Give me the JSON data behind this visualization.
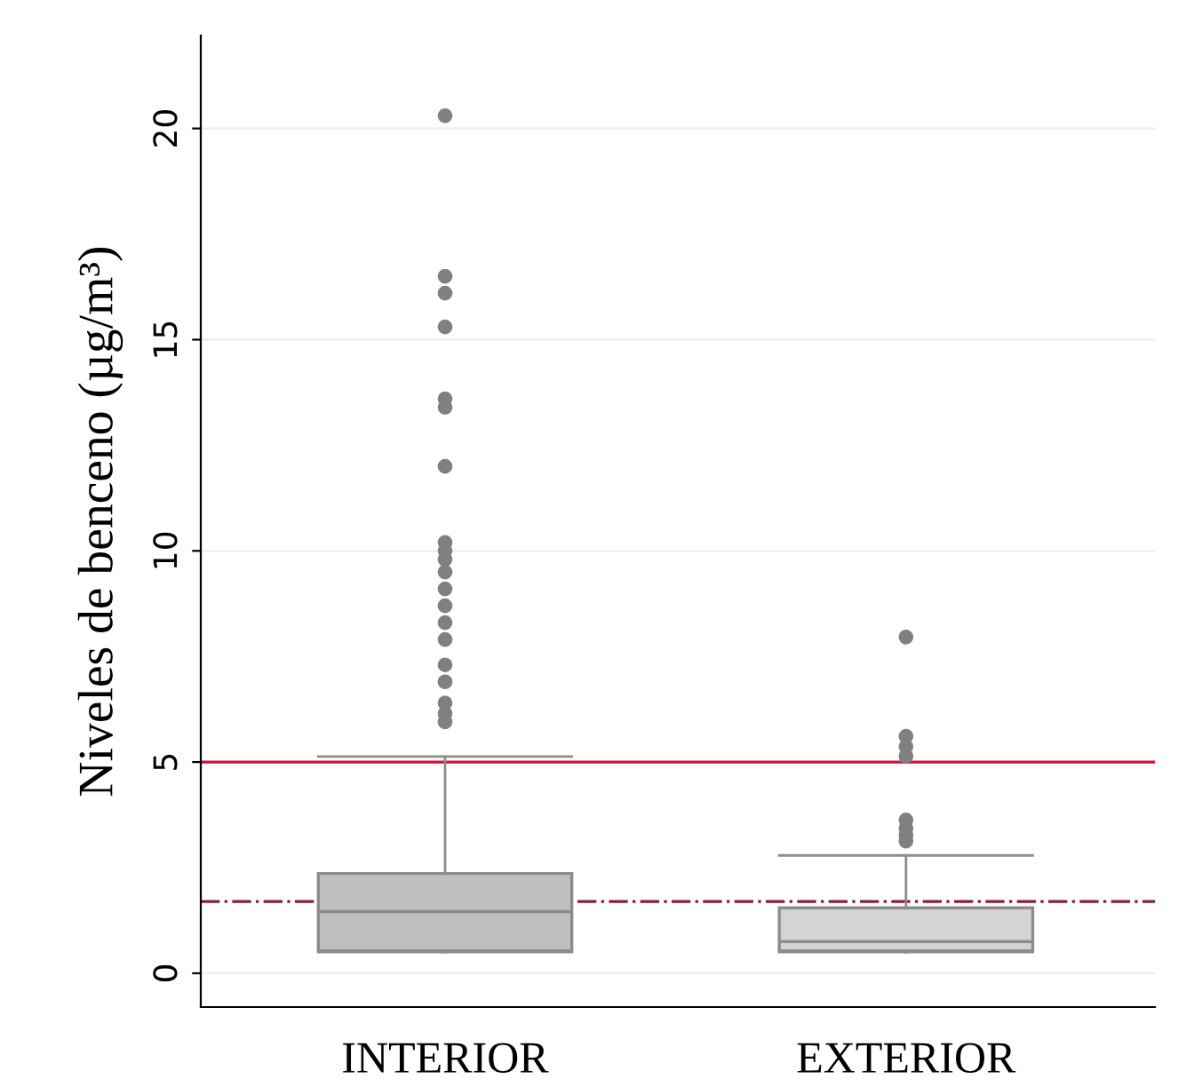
{
  "chart_data": {
    "type": "box",
    "ylabel": "Niveles de benceno (µg/m³)",
    "categories": [
      "INTERIOR",
      "EXTERIOR"
    ],
    "boxes": [
      {
        "low": 0.5,
        "q1": 0.53,
        "median": 1.46,
        "q3": 2.36,
        "high": 5.13,
        "outliers": [
          20.3,
          16.5,
          16.1,
          15.3,
          13.6,
          13.4,
          12.0,
          10.2,
          10.0,
          9.8,
          9.5,
          9.1,
          8.7,
          8.3,
          7.9,
          7.3,
          6.9,
          6.4,
          6.15,
          5.95
        ]
      },
      {
        "low": 0.5,
        "q1": 0.53,
        "median": 0.75,
        "q3": 1.55,
        "high": 2.79,
        "outliers": [
          7.96,
          5.61,
          5.37,
          5.14,
          3.63,
          3.43,
          3.27,
          3.13
        ]
      }
    ],
    "colors": [
      "#bfbfbf",
      "#d4d4d4"
    ],
    "ylim": [
      -0.8,
      22.2
    ],
    "yticks": [
      0,
      5,
      10,
      15,
      20
    ],
    "grid": "y",
    "ref_lines": [
      {
        "axis": "y",
        "value": 5,
        "label": null,
        "color": "#d0103a",
        "line_style": "solid"
      },
      {
        "axis": "y",
        "value": 1.7,
        "label": null,
        "color": "#8b1a4a",
        "line_style": "dashdot"
      }
    ]
  }
}
